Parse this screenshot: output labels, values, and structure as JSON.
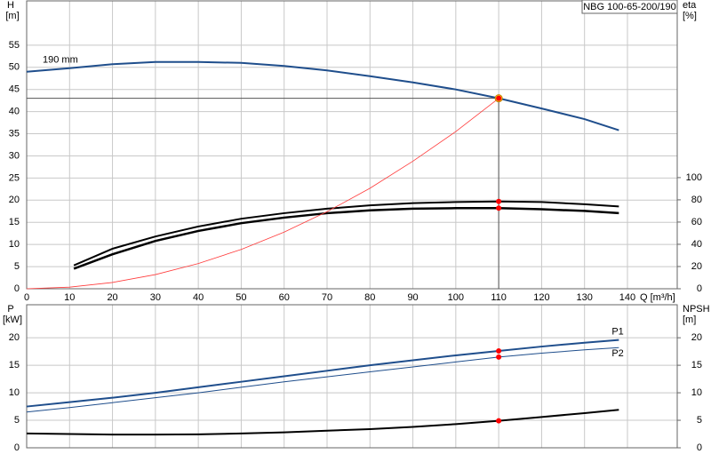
{
  "chart_data": [
    {
      "type": "line",
      "title": "NBG 100-65-200/190",
      "ylabel": "H",
      "yunit": "[m]",
      "y2label": "eta",
      "y2unit": "[%]",
      "xlabel": "Q [m³/h]",
      "xlim": [
        0,
        151.6
      ],
      "xticks": [
        0,
        10,
        20,
        30,
        40,
        50,
        60,
        70,
        80,
        90,
        100,
        110,
        120,
        130,
        140
      ],
      "xtick_labels": true,
      "ylim": [
        0,
        65
      ],
      "yticks": [
        0,
        5,
        10,
        15,
        20,
        25,
        30,
        35,
        40,
        45,
        50,
        55
      ],
      "y2lim": [
        0,
        259
      ],
      "y2ticks": [
        0,
        20,
        40,
        60,
        80,
        100
      ],
      "grid": true,
      "marked_x": 110,
      "marker_color": "#ff0000",
      "series": [
        {
          "name": "190 mm",
          "label_position": "start",
          "color": "#1f4e8c",
          "width": 2,
          "marker_color": "#ffd21f",
          "crosshair": true,
          "x": [
            0,
            10,
            20,
            30,
            40,
            50,
            60,
            70,
            80,
            90,
            100,
            110,
            120,
            130,
            138
          ],
          "values": [
            49,
            49.8,
            50.7,
            51.2,
            51.2,
            51,
            50.3,
            49.3,
            48,
            46.6,
            45,
            43,
            40.7,
            38.3,
            35.8
          ]
        },
        {
          "color": "#000000",
          "width": 2,
          "axis": "y2",
          "x": [
            11,
            20,
            30,
            40,
            50,
            60,
            70,
            80,
            90,
            100,
            110,
            120,
            130,
            138
          ],
          "values": [
            21,
            36,
            47,
            56,
            63,
            68,
            72,
            75,
            77,
            78,
            78.5,
            78,
            76,
            74
          ]
        },
        {
          "color": "#000000",
          "width": 2.5,
          "axis": "y2",
          "x": [
            11,
            20,
            30,
            40,
            50,
            60,
            70,
            80,
            90,
            100,
            110,
            120,
            130,
            138
          ],
          "values": [
            18,
            31,
            43,
            52,
            59,
            64,
            68,
            70.5,
            72,
            72.5,
            72.5,
            71.5,
            70,
            68
          ]
        },
        {
          "color": "#ff3b3b",
          "width": 0.8,
          "x": [
            0,
            10,
            20,
            30,
            40,
            50,
            60,
            70,
            80,
            90,
            100,
            110
          ],
          "values": [
            0,
            0.36,
            1.42,
            3.2,
            5.69,
            8.88,
            12.8,
            17.4,
            22.7,
            28.8,
            35.5,
            43
          ]
        }
      ]
    },
    {
      "type": "line",
      "ylabel": "P",
      "yunit": "[kW]",
      "y2label": "NPSH",
      "y2unit": "[m]",
      "xlim": [
        0,
        151.6
      ],
      "xticks": [
        0,
        10,
        20,
        30,
        40,
        50,
        60,
        70,
        80,
        90,
        100,
        110,
        120,
        130,
        140
      ],
      "xtick_labels": false,
      "ylim": [
        0,
        26
      ],
      "yticks": [
        0,
        5,
        10,
        15,
        20
      ],
      "y2lim": [
        0,
        26
      ],
      "y2ticks": [
        0,
        5,
        10,
        15,
        20
      ],
      "grid": true,
      "marked_x": 110,
      "marker_color": "#ff0000",
      "series": [
        {
          "name": "P1",
          "label_position": "end",
          "color": "#1f4e8c",
          "width": 2,
          "x": [
            0,
            10,
            20,
            30,
            40,
            50,
            60,
            70,
            80,
            90,
            100,
            110,
            120,
            130,
            138
          ],
          "values": [
            7.5,
            8.3,
            9.1,
            10,
            11,
            12,
            13,
            14,
            15,
            15.9,
            16.8,
            17.6,
            18.4,
            19.1,
            19.6
          ]
        },
        {
          "name": "P2",
          "label_position": "end",
          "color": "#1f4e8c",
          "width": 1,
          "x": [
            0,
            10,
            20,
            30,
            40,
            50,
            60,
            70,
            80,
            90,
            100,
            110,
            120,
            130,
            138
          ],
          "values": [
            6.5,
            7.3,
            8.2,
            9.1,
            10,
            11,
            12,
            12.9,
            13.8,
            14.7,
            15.6,
            16.5,
            17.2,
            17.8,
            18.2
          ]
        },
        {
          "color": "#000000",
          "width": 2,
          "axis": "y2",
          "x": [
            0,
            10,
            20,
            30,
            40,
            50,
            60,
            70,
            80,
            90,
            100,
            110,
            120,
            130,
            138
          ],
          "values": [
            2.6,
            2.5,
            2.4,
            2.4,
            2.45,
            2.6,
            2.8,
            3.1,
            3.4,
            3.8,
            4.3,
            4.9,
            5.6,
            6.3,
            6.9
          ]
        }
      ]
    }
  ]
}
